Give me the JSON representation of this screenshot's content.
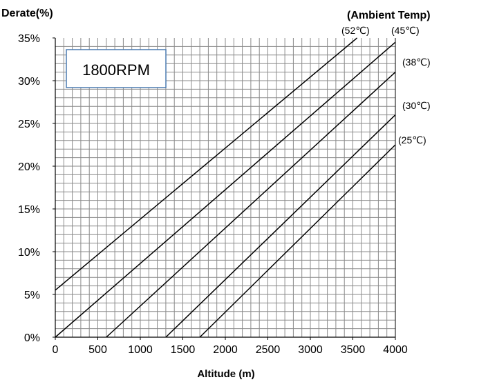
{
  "chart_data": {
    "type": "line",
    "ylabel": "Derate(%)",
    "xlabel": "Altitude (m)",
    "legend_title": "(Ambient Temp)",
    "annotation": "1800RPM",
    "xlim": [
      0,
      4000
    ],
    "ylim": [
      0,
      35
    ],
    "x_ticks": [
      "0",
      "500",
      "1000",
      "1500",
      "2000",
      "2500",
      "3000",
      "3500",
      "4000"
    ],
    "y_ticks": [
      "0%",
      "5%",
      "10%",
      "15%",
      "20%",
      "25%",
      "30%",
      "35%"
    ],
    "grid": true,
    "series": [
      {
        "name": "(52℃)",
        "x": [
          0,
          3550
        ],
        "y": [
          5.5,
          35
        ]
      },
      {
        "name": "(45℃)",
        "x": [
          0,
          4000
        ],
        "y": [
          0,
          34.5
        ]
      },
      {
        "name": "(38℃)",
        "x": [
          600,
          4000
        ],
        "y": [
          0,
          31
        ]
      },
      {
        "name": "(30℃)",
        "x": [
          1300,
          4000
        ],
        "y": [
          0,
          26
        ]
      },
      {
        "name": "(25℃)",
        "x": [
          1700,
          4000
        ],
        "y": [
          0,
          22.5
        ]
      }
    ],
    "colors": {
      "line": "#000000",
      "grid": "#8a8a8a",
      "annotation_border": "#4a7ab0"
    }
  }
}
